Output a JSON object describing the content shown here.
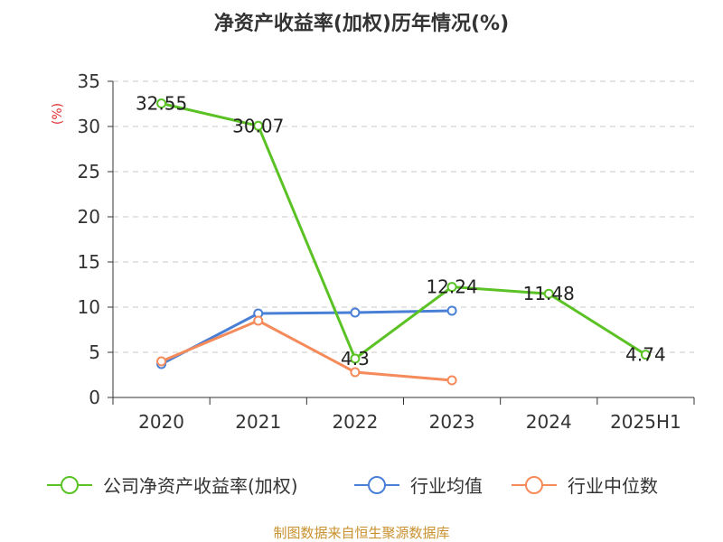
{
  "chart_data": {
    "type": "line",
    "title": "净资产收益率(加权)历年情况(%)",
    "ylabel": "(%)",
    "categories": [
      "2020",
      "2021",
      "2022",
      "2023",
      "2024",
      "2025H1"
    ],
    "ylim": [
      0,
      35
    ],
    "yticks": [
      0,
      5,
      10,
      15,
      20,
      25,
      30,
      35
    ],
    "grid": true,
    "legend_position": "bottom",
    "series": [
      {
        "name": "公司净资产收益率(加权)",
        "color": "#5bc225",
        "values": [
          32.55,
          30.07,
          4.3,
          12.24,
          11.48,
          4.74
        ],
        "labels": [
          "32.55",
          "30.07",
          "4.3",
          "12.24",
          "11.48",
          "4.74"
        ]
      },
      {
        "name": "行业均值",
        "color": "#4a7fd6",
        "values": [
          3.7,
          9.3,
          9.4,
          9.6,
          null,
          null
        ]
      },
      {
        "name": "行业中位数",
        "color": "#f58b5a",
        "values": [
          4.0,
          8.5,
          2.8,
          1.9,
          null,
          null
        ]
      }
    ]
  },
  "footer": "制图数据来自恒生聚源数据库"
}
